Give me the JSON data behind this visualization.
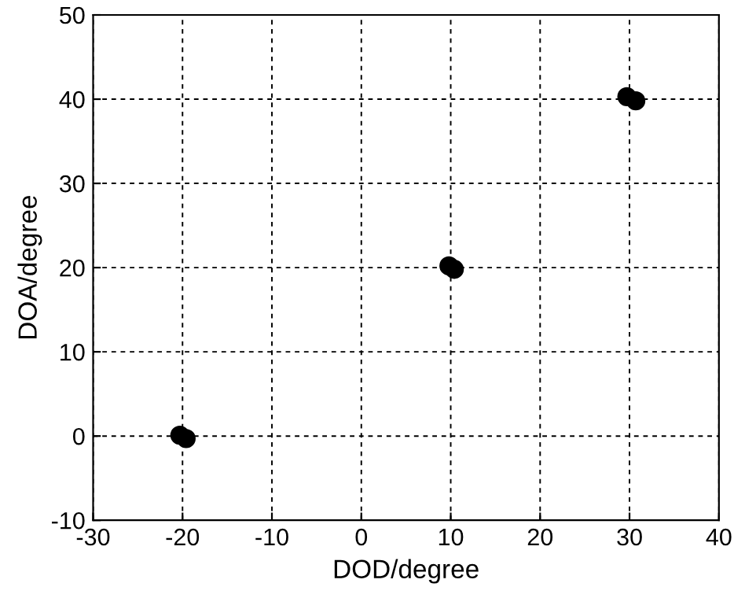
{
  "chart_data": {
    "type": "scatter",
    "xlabel": "DOD/degree",
    "ylabel": "DOA/degree",
    "x": [
      -20.3,
      -19.6,
      9.8,
      10.4,
      29.7,
      30.7
    ],
    "values": [
      0.1,
      -0.3,
      20.2,
      19.8,
      40.3,
      39.8
    ],
    "color": "#000000",
    "marker": "circle",
    "xlim": [
      -30,
      40
    ],
    "ylim": [
      -10,
      50
    ],
    "xticks": [
      -30,
      -20,
      -10,
      0,
      10,
      20,
      30,
      40
    ],
    "yticks": [
      -10,
      0,
      10,
      20,
      30,
      40,
      50
    ],
    "grid": true
  }
}
